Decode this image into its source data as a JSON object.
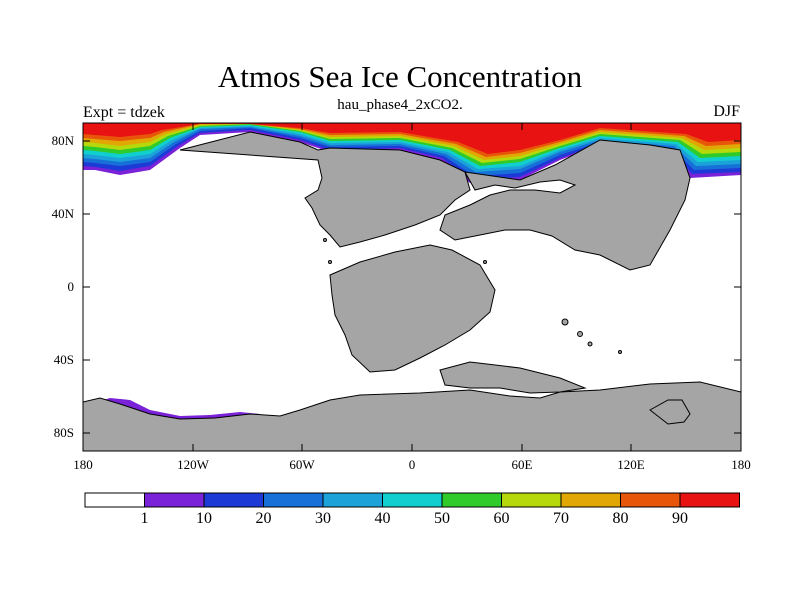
{
  "map": {
    "title": "Atmos Sea Ice Concentration",
    "subtitle": "hau_phase4_2xCO2.",
    "left_label": "Expt = tdzek",
    "right_label": "DJF",
    "projection": "cylindrical equidistant",
    "lon_range": [
      -180,
      180
    ],
    "lat_range": [
      -90,
      90
    ],
    "lat_ticks": [
      "80N",
      "40N",
      "0",
      "40S",
      "80S"
    ],
    "lon_ticks": [
      "180",
      "120W",
      "60W",
      "0",
      "60E",
      "120E",
      "180"
    ],
    "land_color": "#a5a5a5",
    "ocean_color": "#ffffff"
  },
  "colorbar": {
    "labels": [
      "1",
      "10",
      "20",
      "30",
      "40",
      "50",
      "60",
      "70",
      "80",
      "90"
    ],
    "colors": [
      "#ffffff",
      "#7a22d8",
      "#1e3ad6",
      "#1770d8",
      "#1ba3d9",
      "#12cfcf",
      "#2ecb2a",
      "#b5d90a",
      "#e1a705",
      "#e8560a",
      "#e81212"
    ]
  }
}
